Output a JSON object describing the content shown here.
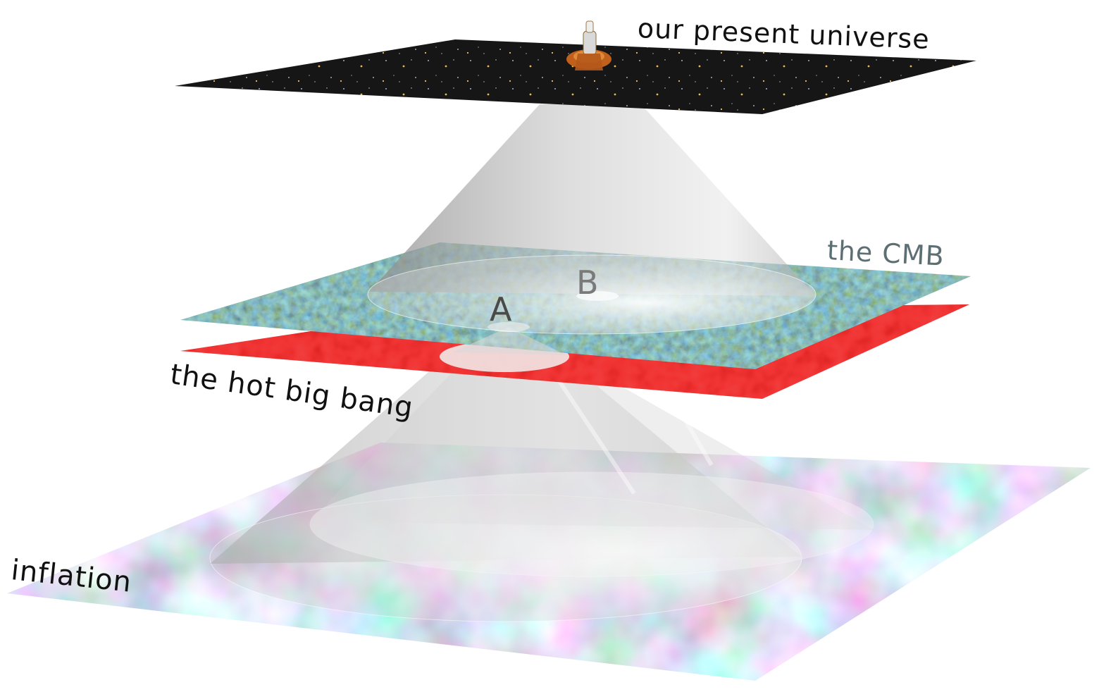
{
  "layers": {
    "present": {
      "label": "our present universe"
    },
    "cmb": {
      "label": "the CMB"
    },
    "hot_big_bang": {
      "label": "the hot big bang"
    },
    "inflation": {
      "label": "inflation"
    }
  },
  "points": {
    "a": "A",
    "b": "B"
  },
  "colors": {
    "present_plane": "#1a1a1a",
    "cmb_cool": "#3b6fb0",
    "cmb_warm": "#3fae6a",
    "hot_big_bang_plane": "#e01414",
    "cone": "#b8b8b8",
    "cmb_label": "#5e6f73"
  },
  "icons": {
    "observer": "satellite-icon"
  }
}
